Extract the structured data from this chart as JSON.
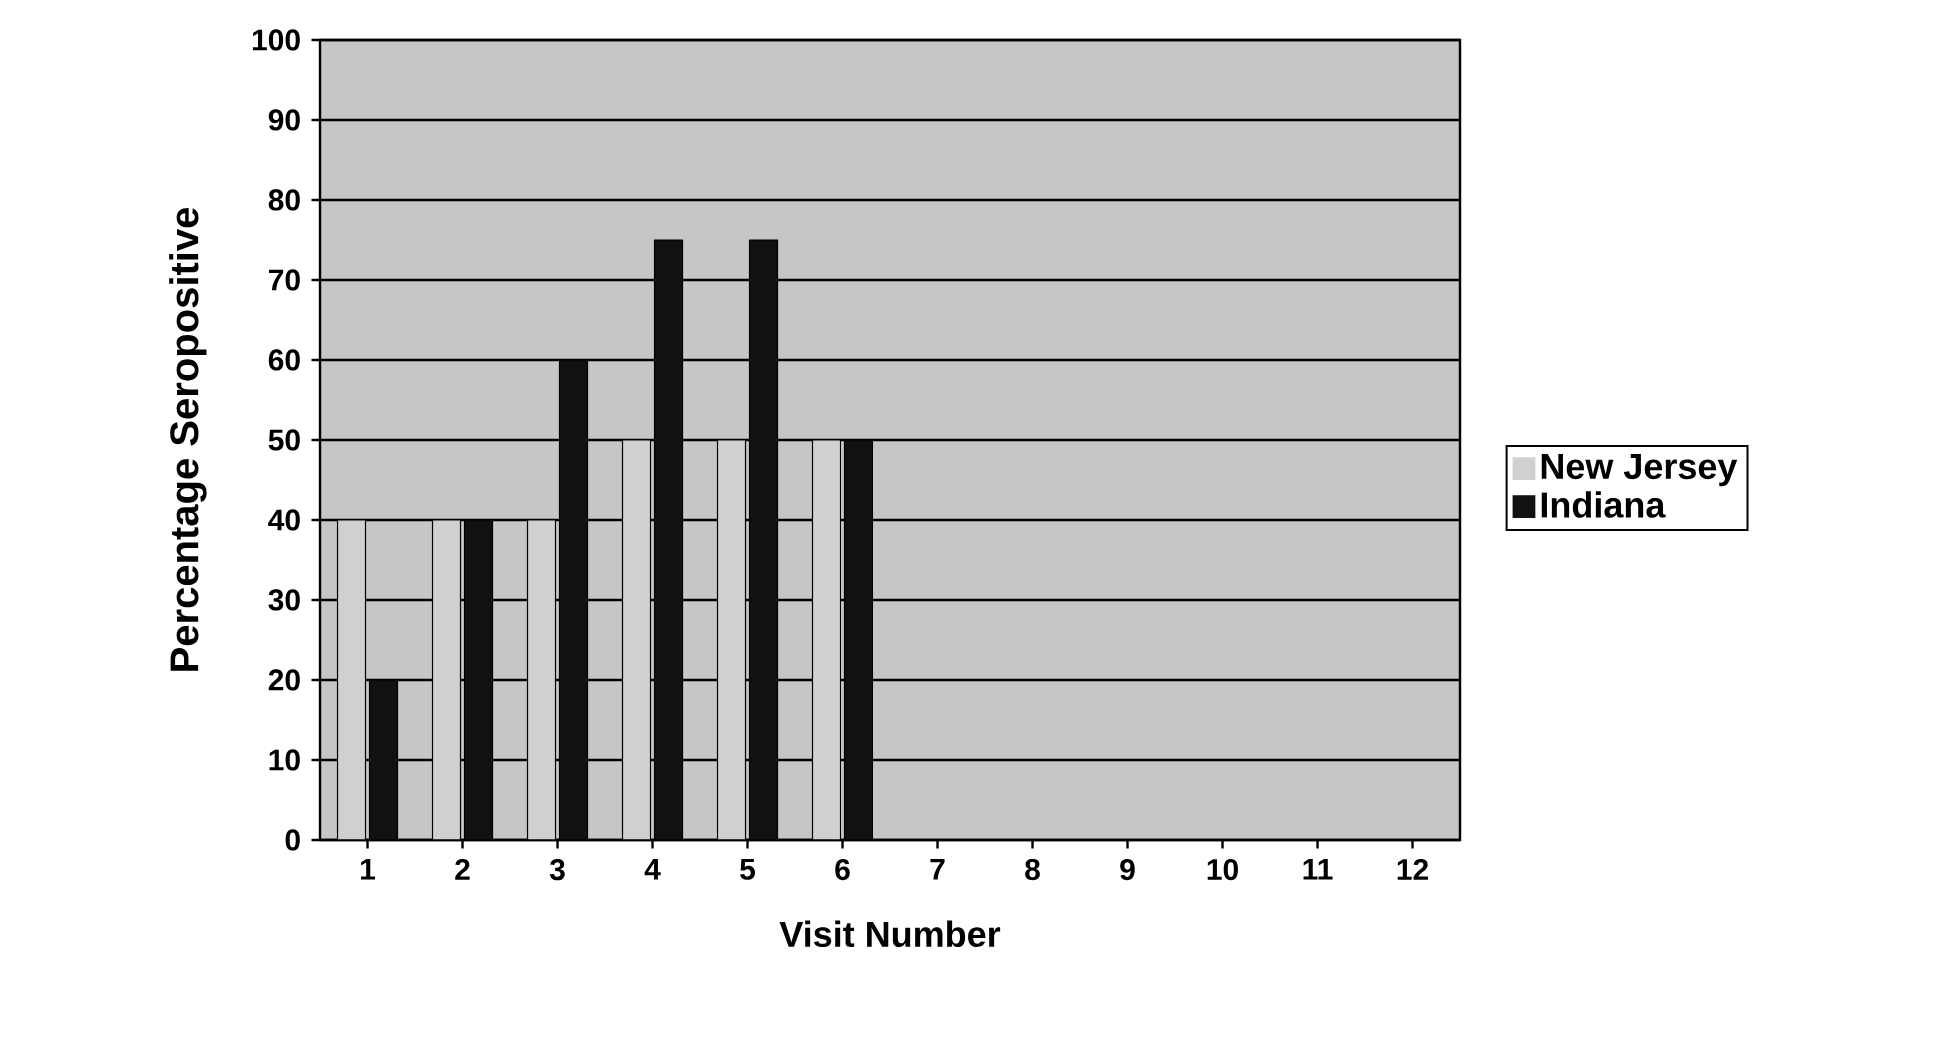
{
  "chart_data": {
    "type": "bar",
    "xlabel": "Visit Number",
    "ylabel": "Percentage Seropositive",
    "categories": [
      "1",
      "2",
      "3",
      "4",
      "5",
      "6",
      "7",
      "8",
      "9",
      "10",
      "11",
      "12"
    ],
    "series": [
      {
        "name": "New Jersey",
        "color": "#d0d0d0",
        "values": [
          40,
          40,
          40,
          50,
          50,
          50,
          null,
          null,
          null,
          null,
          null,
          null
        ]
      },
      {
        "name": "Indiana",
        "color": "#111111",
        "values": [
          20,
          40,
          60,
          75,
          75,
          50,
          null,
          null,
          null,
          null,
          null,
          null
        ]
      }
    ],
    "ylim": [
      0,
      100
    ],
    "yticks": [
      0,
      10,
      20,
      30,
      40,
      50,
      60,
      70,
      80,
      90,
      100
    ],
    "grid": "y",
    "legend": "right"
  }
}
